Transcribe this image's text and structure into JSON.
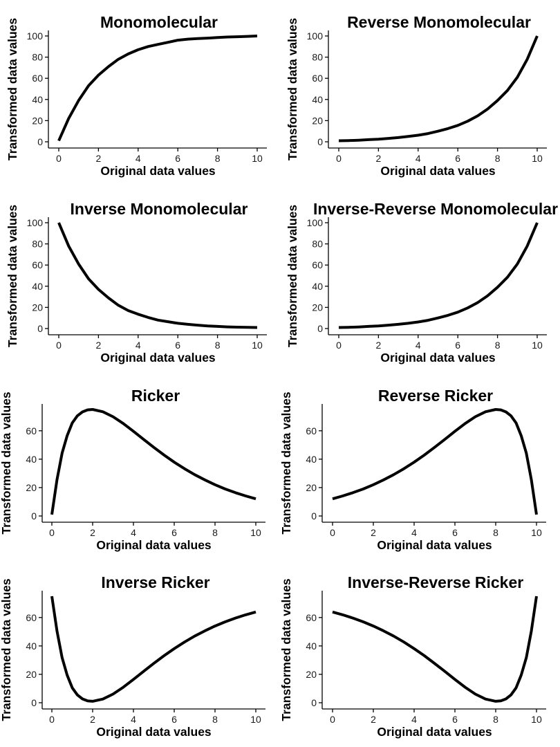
{
  "chart_data": [
    {
      "type": "line",
      "title": "Monomolecular",
      "xlabel": "Original data values",
      "ylabel": "Transformed data values",
      "xlim": [
        0,
        10
      ],
      "ylim": [
        0,
        100
      ],
      "xticks": [
        0,
        2,
        4,
        6,
        8,
        10
      ],
      "yticks": [
        0,
        20,
        40,
        60,
        80,
        100
      ],
      "grid": false,
      "series": [
        {
          "x": [
            0,
            0.5,
            1,
            1.5,
            2,
            2.5,
            3,
            3.5,
            4,
            4.5,
            5,
            5.5,
            6,
            6.5,
            7,
            7.5,
            8,
            8.5,
            9,
            9.5,
            10
          ],
          "y": [
            1,
            22,
            39,
            53,
            63,
            71,
            78,
            83,
            87,
            90,
            92,
            94,
            96,
            97,
            97.5,
            98,
            98.5,
            99,
            99.3,
            99.6,
            100
          ]
        }
      ]
    },
    {
      "type": "line",
      "title": "Reverse Monomolecular",
      "xlabel": "Original data values",
      "ylabel": "Transformed data values",
      "xlim": [
        0,
        10
      ],
      "ylim": [
        0,
        100
      ],
      "xticks": [
        0,
        2,
        4,
        6,
        8,
        10
      ],
      "yticks": [
        0,
        20,
        40,
        60,
        80,
        100
      ],
      "grid": false,
      "series": [
        {
          "x": [
            0,
            0.5,
            1,
            1.5,
            2,
            2.5,
            3,
            3.5,
            4,
            4.5,
            5,
            5.5,
            6,
            6.5,
            7,
            7.5,
            8,
            8.5,
            9,
            9.5,
            10
          ],
          "y": [
            1,
            1.2,
            1.5,
            2,
            2.5,
            3.2,
            4,
            5,
            6.2,
            7.8,
            10,
            12.5,
            15.5,
            19.5,
            24.5,
            31,
            39,
            48.5,
            61,
            78,
            100
          ]
        }
      ]
    },
    {
      "type": "line",
      "title": "Inverse Monomolecular",
      "xlabel": "Original data values",
      "ylabel": "Transformed data values",
      "xlim": [
        0,
        10
      ],
      "ylim": [
        0,
        100
      ],
      "xticks": [
        0,
        2,
        4,
        6,
        8,
        10
      ],
      "yticks": [
        0,
        20,
        40,
        60,
        80,
        100
      ],
      "grid": false,
      "series": [
        {
          "x": [
            0,
            0.5,
            1,
            1.5,
            2,
            2.5,
            3,
            3.5,
            4,
            4.5,
            5,
            5.5,
            6,
            6.5,
            7,
            7.5,
            8,
            8.5,
            9,
            9.5,
            10
          ],
          "y": [
            100,
            78,
            61,
            47,
            37,
            29,
            22,
            17,
            13.5,
            10.5,
            8,
            6.5,
            5,
            4,
            3.2,
            2.5,
            2,
            1.6,
            1.3,
            1.1,
            1
          ]
        }
      ]
    },
    {
      "type": "line",
      "title": "Inverse-Reverse Monomolecular",
      "xlabel": "Original data values",
      "ylabel": "Transformed data values",
      "xlim": [
        0,
        10
      ],
      "ylim": [
        0,
        100
      ],
      "xticks": [
        0,
        2,
        4,
        6,
        8,
        10
      ],
      "yticks": [
        0,
        20,
        40,
        60,
        80,
        100
      ],
      "grid": false,
      "series": [
        {
          "x": [
            0,
            0.5,
            1,
            1.5,
            2,
            2.5,
            3,
            3.5,
            4,
            4.5,
            5,
            5.5,
            6,
            6.5,
            7,
            7.5,
            8,
            8.5,
            9,
            9.5,
            10
          ],
          "y": [
            1,
            1.2,
            1.5,
            2,
            2.5,
            3.2,
            4,
            5,
            6.2,
            7.8,
            10,
            12.5,
            15.5,
            19.5,
            24.5,
            31,
            39,
            48.5,
            61,
            78,
            100
          ]
        }
      ]
    },
    {
      "type": "line",
      "title": "Ricker",
      "xlabel": "Original data values",
      "ylabel": "Transformed data values",
      "xlim": [
        0,
        10
      ],
      "ylim": [
        0,
        75
      ],
      "xticks": [
        0,
        2,
        4,
        6,
        8,
        10
      ],
      "yticks": [
        0,
        20,
        40,
        60
      ],
      "grid": false,
      "series": [
        {
          "x": [
            0,
            0.25,
            0.5,
            0.75,
            1,
            1.25,
            1.5,
            1.75,
            2,
            2.5,
            3,
            3.5,
            4,
            4.5,
            5,
            5.5,
            6,
            6.5,
            7,
            7.5,
            8,
            8.5,
            9,
            9.5,
            10
          ],
          "y": [
            1,
            25.4,
            44.2,
            56.5,
            65.5,
            70.5,
            73.3,
            74.7,
            75,
            73.4,
            69.9,
            65.1,
            59.6,
            53.9,
            48.3,
            42.9,
            37.9,
            33.3,
            29.1,
            25.4,
            22,
            19,
            16.4,
            14.1,
            12.1
          ]
        }
      ]
    },
    {
      "type": "line",
      "title": "Reverse Ricker",
      "xlabel": "Original data values",
      "ylabel": "Transformed data values",
      "xlim": [
        0,
        10
      ],
      "ylim": [
        0,
        75
      ],
      "xticks": [
        0,
        2,
        4,
        6,
        8,
        10
      ],
      "yticks": [
        0,
        20,
        40,
        60
      ],
      "grid": false,
      "series": [
        {
          "x": [
            0,
            0.5,
            1,
            1.5,
            2,
            2.5,
            3,
            3.5,
            4,
            4.5,
            5,
            5.5,
            6,
            6.5,
            7,
            7.5,
            8,
            8.25,
            8.5,
            8.75,
            9,
            9.25,
            9.5,
            9.75,
            10
          ],
          "y": [
            12.1,
            14.1,
            16.4,
            19,
            22,
            25.4,
            29.1,
            33.3,
            37.9,
            42.9,
            48.3,
            53.9,
            59.6,
            65.1,
            69.9,
            73.4,
            75,
            74.7,
            73.3,
            70.5,
            65.5,
            56.5,
            44.2,
            25.4,
            1
          ]
        }
      ]
    },
    {
      "type": "line",
      "title": "Inverse Ricker",
      "xlabel": "Original data values",
      "ylabel": "Transformed data values",
      "xlim": [
        0,
        10
      ],
      "ylim": [
        0,
        75
      ],
      "xticks": [
        0,
        2,
        4,
        6,
        8,
        10
      ],
      "yticks": [
        0,
        20,
        40,
        60
      ],
      "grid": false,
      "series": [
        {
          "x": [
            0,
            0.25,
            0.5,
            0.75,
            1,
            1.25,
            1.5,
            1.75,
            2,
            2.5,
            3,
            3.5,
            4,
            4.5,
            5,
            5.5,
            6,
            6.5,
            7,
            7.5,
            8,
            8.5,
            9,
            9.5,
            10
          ],
          "y": [
            75,
            50.6,
            31.8,
            19.5,
            10.5,
            5.5,
            2.7,
            1.3,
            1,
            2.6,
            6.1,
            10.9,
            16.4,
            22.1,
            27.7,
            33.1,
            38.1,
            42.7,
            46.9,
            50.6,
            54,
            57,
            59.6,
            61.9,
            63.9
          ]
        }
      ]
    },
    {
      "type": "line",
      "title": "Inverse-Reverse Ricker",
      "xlabel": "Original data values",
      "ylabel": "Transformed data values",
      "xlim": [
        0,
        10
      ],
      "ylim": [
        0,
        75
      ],
      "xticks": [
        0,
        2,
        4,
        6,
        8,
        10
      ],
      "yticks": [
        0,
        20,
        40,
        60
      ],
      "grid": false,
      "series": [
        {
          "x": [
            0,
            0.5,
            1,
            1.5,
            2,
            2.5,
            3,
            3.5,
            4,
            4.5,
            5,
            5.5,
            6,
            6.5,
            7,
            7.5,
            8,
            8.25,
            8.5,
            8.75,
            9,
            9.25,
            9.5,
            9.75,
            10
          ],
          "y": [
            63.9,
            61.9,
            59.6,
            57,
            54,
            50.6,
            46.9,
            42.7,
            38.1,
            33.1,
            27.7,
            22.1,
            16.4,
            10.9,
            6.1,
            2.6,
            1,
            1.3,
            2.7,
            5.5,
            10.5,
            19.5,
            31.8,
            50.6,
            75
          ]
        }
      ]
    }
  ]
}
